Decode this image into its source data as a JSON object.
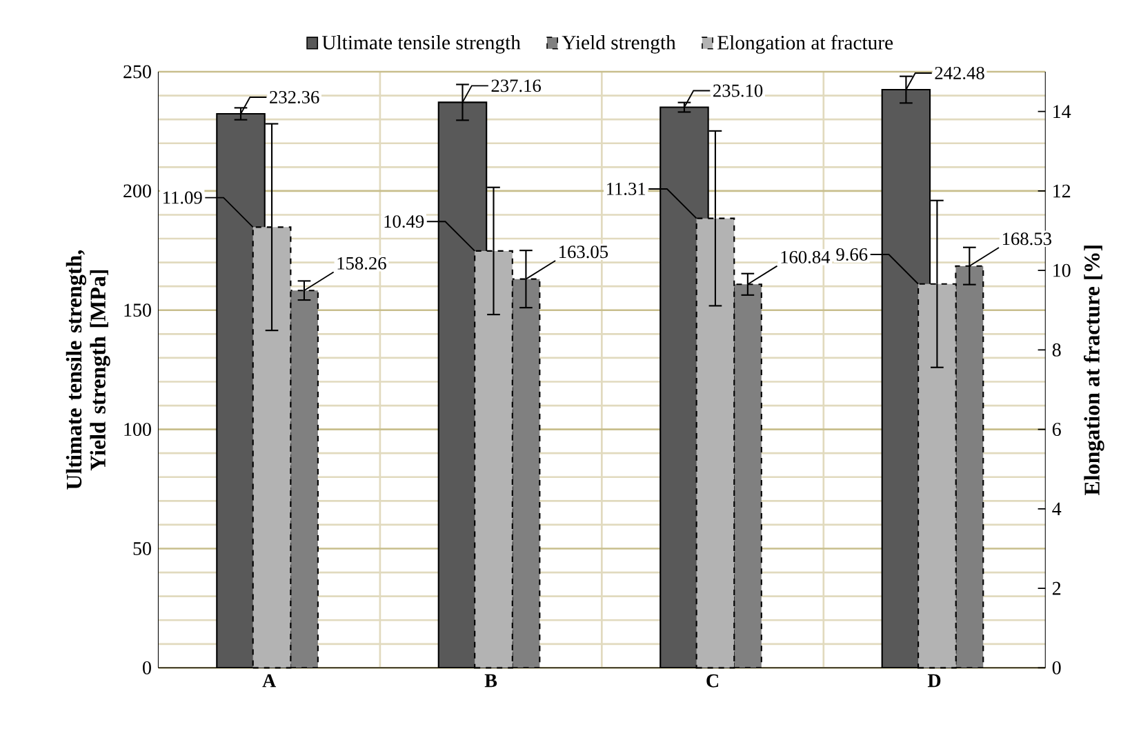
{
  "chart_data": {
    "type": "bar",
    "categories": [
      "A",
      "B",
      "C",
      "D"
    ],
    "ylabel": "Ultimate tensile strength, Yield strength [MPa]",
    "y2label": "Elongation at fracture [%]",
    "ylim": [
      0,
      250
    ],
    "yticks": [
      0,
      50,
      100,
      150,
      200,
      250
    ],
    "y2lim": [
      0,
      15
    ],
    "y2ticks": [
      0,
      2,
      4,
      6,
      8,
      10,
      12,
      14
    ],
    "grid": true,
    "legend": "top",
    "series": [
      {
        "name": "Ultimate tensile strength",
        "color": "#595959",
        "values": [
          232.36,
          237.16,
          235.1,
          242.48
        ],
        "errors": [
          2.5,
          7.5,
          2,
          5.6
        ],
        "value_labels": [
          "232.36",
          "237.16",
          "235.10",
          "242.48"
        ]
      },
      {
        "name": "Yield strength",
        "color": "#808080",
        "values": [
          158.26,
          163.05,
          160.84,
          168.53
        ],
        "errors": [
          4,
          12,
          4.5,
          7.8
        ],
        "value_labels": [
          "158.26",
          "163.05",
          "160.84",
          "168.53"
        ],
        "line_style": "dashed"
      },
      {
        "name": "Elongation at fracture",
        "color": "#b3b3b3",
        "axis": "y2",
        "values": [
          11.09,
          10.49,
          11.31,
          9.66
        ],
        "errors": [
          2.6,
          1.6,
          2.2,
          2.1
        ],
        "value_labels": [
          "11.09",
          "10.49",
          "11.31",
          "9.66"
        ],
        "line_style": "dashed"
      }
    ]
  }
}
